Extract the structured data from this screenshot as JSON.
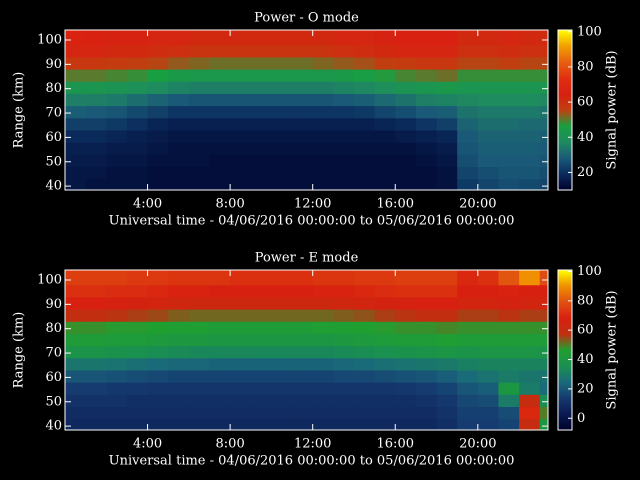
{
  "chart_data": [
    {
      "type": "heatmap",
      "title": "Power - O mode",
      "xlabel": "Universal time - 04/06/2016 00:00:00 to 05/06/2016 00:00:00",
      "ylabel": "Range (km)",
      "colorbar_label": "Signal power (dB)",
      "xlim": [
        0,
        23.4
      ],
      "ylim": [
        38.4,
        104.1
      ],
      "clim": [
        10,
        101
      ],
      "xticks": [
        {
          "value": 4,
          "label": "4:00"
        },
        {
          "value": 8,
          "label": "8:00"
        },
        {
          "value": 12,
          "label": "12:00"
        },
        {
          "value": 16,
          "label": "16:00"
        },
        {
          "value": 20,
          "label": "20:00"
        }
      ],
      "yticks": [
        40,
        50,
        60,
        70,
        80,
        90,
        100
      ],
      "cticks": [
        20,
        40,
        60,
        80,
        100
      ],
      "colors": [
        "#00002a",
        "#0a2a5c",
        "#1a5a78",
        "#1f8a60",
        "#18a040",
        "#c04010",
        "#d82010",
        "#e03010",
        "#e86010",
        "#f0a000",
        "#ffff00"
      ],
      "xbins": [
        0,
        1,
        2,
        3,
        4,
        5,
        6,
        7,
        8,
        9,
        10,
        11,
        12,
        13,
        14,
        15,
        16,
        17,
        18,
        19,
        20,
        21,
        22,
        23,
        23.4
      ],
      "ybins": [
        38.4,
        43,
        48,
        53,
        58,
        63,
        68,
        73,
        78,
        83,
        88,
        93,
        98,
        104.1
      ],
      "z": [
        [
          15,
          14,
          14,
          14,
          13,
          13,
          13,
          13,
          13,
          13,
          13,
          13,
          13,
          13,
          13,
          13,
          13,
          13,
          14,
          22,
          24,
          26,
          25,
          24
        ],
        [
          15,
          15,
          14,
          14,
          13,
          13,
          13,
          13,
          13,
          13,
          13,
          13,
          13,
          13,
          13,
          13,
          13,
          13,
          14,
          24,
          26,
          27,
          27,
          26
        ],
        [
          16,
          16,
          15,
          15,
          14,
          14,
          14,
          13,
          13,
          13,
          13,
          13,
          13,
          13,
          13,
          13,
          13,
          14,
          15,
          26,
          28,
          28,
          28,
          27
        ],
        [
          17,
          17,
          16,
          16,
          15,
          14,
          14,
          14,
          14,
          14,
          14,
          14,
          14,
          14,
          14,
          14,
          14,
          15,
          16,
          27,
          29,
          29,
          29,
          28
        ],
        [
          19,
          19,
          18,
          17,
          16,
          15,
          15,
          15,
          15,
          15,
          15,
          15,
          15,
          15,
          15,
          15,
          16,
          17,
          18,
          28,
          30,
          30,
          30,
          29
        ],
        [
          23,
          23,
          22,
          20,
          18,
          17,
          17,
          17,
          17,
          17,
          17,
          17,
          17,
          17,
          17,
          18,
          19,
          21,
          23,
          30,
          32,
          32,
          31,
          31
        ],
        [
          29,
          28,
          27,
          25,
          23,
          21,
          21,
          21,
          21,
          21,
          21,
          21,
          21,
          21,
          22,
          24,
          26,
          28,
          29,
          33,
          34,
          34,
          34,
          33
        ],
        [
          35,
          35,
          34,
          32,
          30,
          28,
          27,
          27,
          27,
          27,
          27,
          27,
          27,
          28,
          29,
          31,
          33,
          35,
          36,
          37,
          38,
          38,
          38,
          37
        ],
        [
          42,
          42,
          41,
          40,
          38,
          36,
          35,
          35,
          35,
          35,
          35,
          35,
          35,
          36,
          37,
          39,
          41,
          42,
          43,
          42,
          42,
          42,
          42,
          42
        ],
        [
          50,
          50,
          49,
          48,
          46,
          44,
          43,
          43,
          43,
          43,
          43,
          43,
          43,
          44,
          45,
          47,
          49,
          50,
          51,
          48,
          48,
          48,
          48,
          48
        ],
        [
          58,
          58,
          57,
          56,
          55,
          53,
          52,
          51,
          51,
          51,
          51,
          51,
          52,
          53,
          54,
          56,
          57,
          58,
          58,
          55,
          55,
          56,
          55,
          55
        ],
        [
          63,
          63,
          62,
          62,
          61,
          60,
          59,
          59,
          59,
          59,
          59,
          59,
          59,
          60,
          61,
          62,
          63,
          63,
          63,
          60,
          60,
          61,
          60,
          60
        ],
        [
          66,
          65,
          64,
          64,
          63,
          63,
          62,
          62,
          62,
          62,
          62,
          62,
          62,
          63,
          63,
          64,
          65,
          65,
          65,
          62,
          62,
          63,
          62,
          62
        ]
      ]
    },
    {
      "type": "heatmap",
      "title": "Power - E mode",
      "xlabel": "Universal time - 04/06/2016 00:00:00 to 05/06/2016 00:00:00",
      "ylabel": "Range (km)",
      "colorbar_label": "Signal power (dB)",
      "xlim": [
        0,
        23.4
      ],
      "ylim": [
        38.4,
        104.1
      ],
      "clim": [
        -8,
        101
      ],
      "xticks": [
        {
          "value": 4,
          "label": "4:00"
        },
        {
          "value": 8,
          "label": "8:00"
        },
        {
          "value": 12,
          "label": "12:00"
        },
        {
          "value": 16,
          "label": "16:00"
        },
        {
          "value": 20,
          "label": "20:00"
        }
      ],
      "yticks": [
        40,
        50,
        60,
        70,
        80,
        90,
        100
      ],
      "cticks": [
        0,
        20,
        40,
        60,
        80,
        100
      ],
      "colors": [
        "#00002a",
        "#0a1a50",
        "#153a70",
        "#1a6a7a",
        "#1a9050",
        "#20a030",
        "#c03010",
        "#d82010",
        "#e05010",
        "#f09000",
        "#ffff00"
      ],
      "xbins": [
        0,
        1,
        2,
        3,
        4,
        5,
        6,
        7,
        8,
        9,
        10,
        11,
        12,
        13,
        14,
        15,
        16,
        17,
        18,
        19,
        20,
        21,
        22,
        23,
        23.4
      ],
      "ybins": [
        38.4,
        43,
        48,
        53,
        58,
        63,
        68,
        73,
        78,
        83,
        88,
        93,
        98,
        104.1
      ],
      "z": [
        [
          8,
          8,
          8,
          8,
          8,
          8,
          8,
          8,
          8,
          8,
          8,
          8,
          8,
          8,
          8,
          8,
          8,
          8,
          10,
          14,
          14,
          16,
          60,
          40
        ],
        [
          9,
          9,
          9,
          9,
          9,
          9,
          9,
          9,
          9,
          9,
          9,
          9,
          9,
          9,
          9,
          9,
          9,
          9,
          11,
          15,
          15,
          18,
          70,
          50
        ],
        [
          11,
          11,
          11,
          10,
          10,
          10,
          10,
          10,
          10,
          10,
          10,
          10,
          10,
          10,
          10,
          10,
          10,
          11,
          13,
          17,
          18,
          30,
          60,
          35
        ],
        [
          14,
          14,
          13,
          13,
          12,
          12,
          12,
          12,
          12,
          12,
          12,
          12,
          12,
          12,
          12,
          12,
          13,
          14,
          16,
          20,
          22,
          40,
          30,
          25
        ],
        [
          20,
          20,
          19,
          18,
          17,
          16,
          16,
          16,
          16,
          16,
          16,
          16,
          16,
          17,
          17,
          18,
          19,
          20,
          22,
          25,
          27,
          30,
          28,
          27
        ],
        [
          28,
          28,
          27,
          26,
          25,
          24,
          24,
          23,
          23,
          23,
          23,
          23,
          23,
          24,
          25,
          26,
          27,
          28,
          29,
          31,
          32,
          32,
          32,
          32
        ],
        [
          38,
          38,
          37,
          36,
          35,
          34,
          33,
          33,
          33,
          33,
          33,
          33,
          33,
          34,
          35,
          36,
          37,
          38,
          39,
          38,
          39,
          39,
          39,
          38
        ],
        [
          44,
          44,
          43,
          43,
          42,
          41,
          41,
          40,
          40,
          40,
          40,
          40,
          40,
          41,
          42,
          43,
          44,
          44,
          45,
          44,
          44,
          44,
          44,
          44
        ],
        [
          48,
          48,
          47,
          47,
          46,
          45,
          45,
          44,
          44,
          44,
          44,
          44,
          45,
          45,
          46,
          47,
          48,
          48,
          49,
          48,
          48,
          48,
          48,
          48
        ],
        [
          58,
          58,
          57,
          56,
          55,
          53,
          52,
          52,
          52,
          52,
          52,
          52,
          52,
          53,
          54,
          56,
          57,
          58,
          58,
          56,
          56,
          57,
          56,
          56
        ],
        [
          68,
          68,
          67,
          66,
          65,
          64,
          63,
          63,
          63,
          63,
          63,
          63,
          63,
          64,
          65,
          66,
          67,
          68,
          68,
          65,
          65,
          66,
          65,
          65
        ],
        [
          72,
          72,
          71,
          71,
          70,
          69,
          69,
          68,
          68,
          68,
          68,
          68,
          69,
          69,
          70,
          71,
          72,
          72,
          72,
          68,
          68,
          69,
          68,
          68
        ],
        [
          75,
          75,
          75,
          74,
          74,
          73,
          73,
          73,
          72,
          72,
          72,
          72,
          73,
          73,
          74,
          74,
          75,
          75,
          75,
          70,
          72,
          80,
          90,
          78
        ]
      ]
    }
  ]
}
